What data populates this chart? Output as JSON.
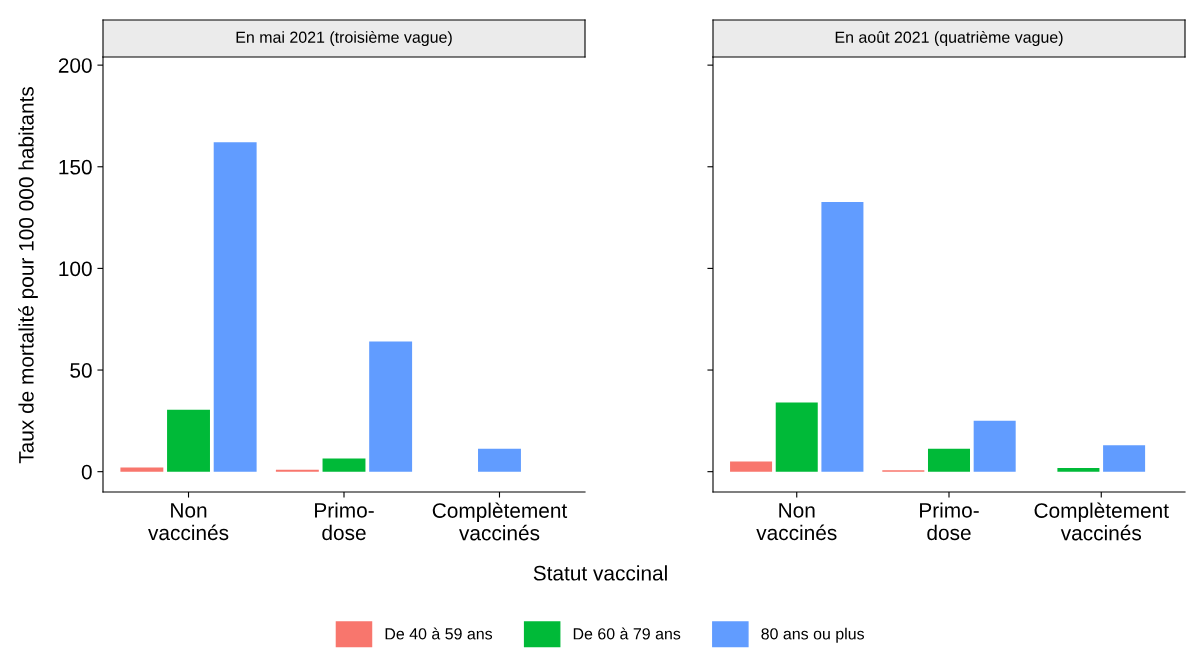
{
  "chart_data": [
    {
      "type": "bar",
      "title": "En mai 2021 (troisième vague)",
      "xlabel": "Statut vaccinal",
      "ylabel": "Taux de mortalité pour 100 000 habitants",
      "categories": [
        "Non\nvaccinés",
        "Primo-\ndose",
        "Complètement\nvaccinés"
      ],
      "ylim": [
        -10,
        204
      ],
      "yticks": [
        0,
        50,
        100,
        150,
        200
      ],
      "grid": false,
      "legend": "bottom",
      "series": [
        {
          "name": "De 40 à 59 ans",
          "color": "#f8766d",
          "values": [
            2,
            1,
            null
          ]
        },
        {
          "name": "De 60 à 79 ans",
          "color": "#00ba38",
          "values": [
            30.5,
            6.5,
            null
          ]
        },
        {
          "name": "80 ans ou plus",
          "color": "#619cff",
          "values": [
            162,
            64,
            11.3
          ]
        }
      ]
    },
    {
      "type": "bar",
      "title": "En août 2021 (quatrième vague)",
      "categories": [
        "Non\nvaccinés",
        "Primo-\ndose",
        "Complètement\nvaccinés"
      ],
      "ylim": [
        -10,
        204
      ],
      "yticks": [
        0,
        50,
        100,
        150,
        200
      ],
      "grid": false,
      "tick_labels": "x",
      "series": [
        {
          "color": "#f8766d",
          "values": [
            5,
            0.7,
            null
          ]
        },
        {
          "color": "#00ba38",
          "values": [
            34,
            11.3,
            1.8
          ]
        },
        {
          "color": "#619cff",
          "values": [
            132.7,
            25,
            13
          ]
        }
      ]
    }
  ]
}
